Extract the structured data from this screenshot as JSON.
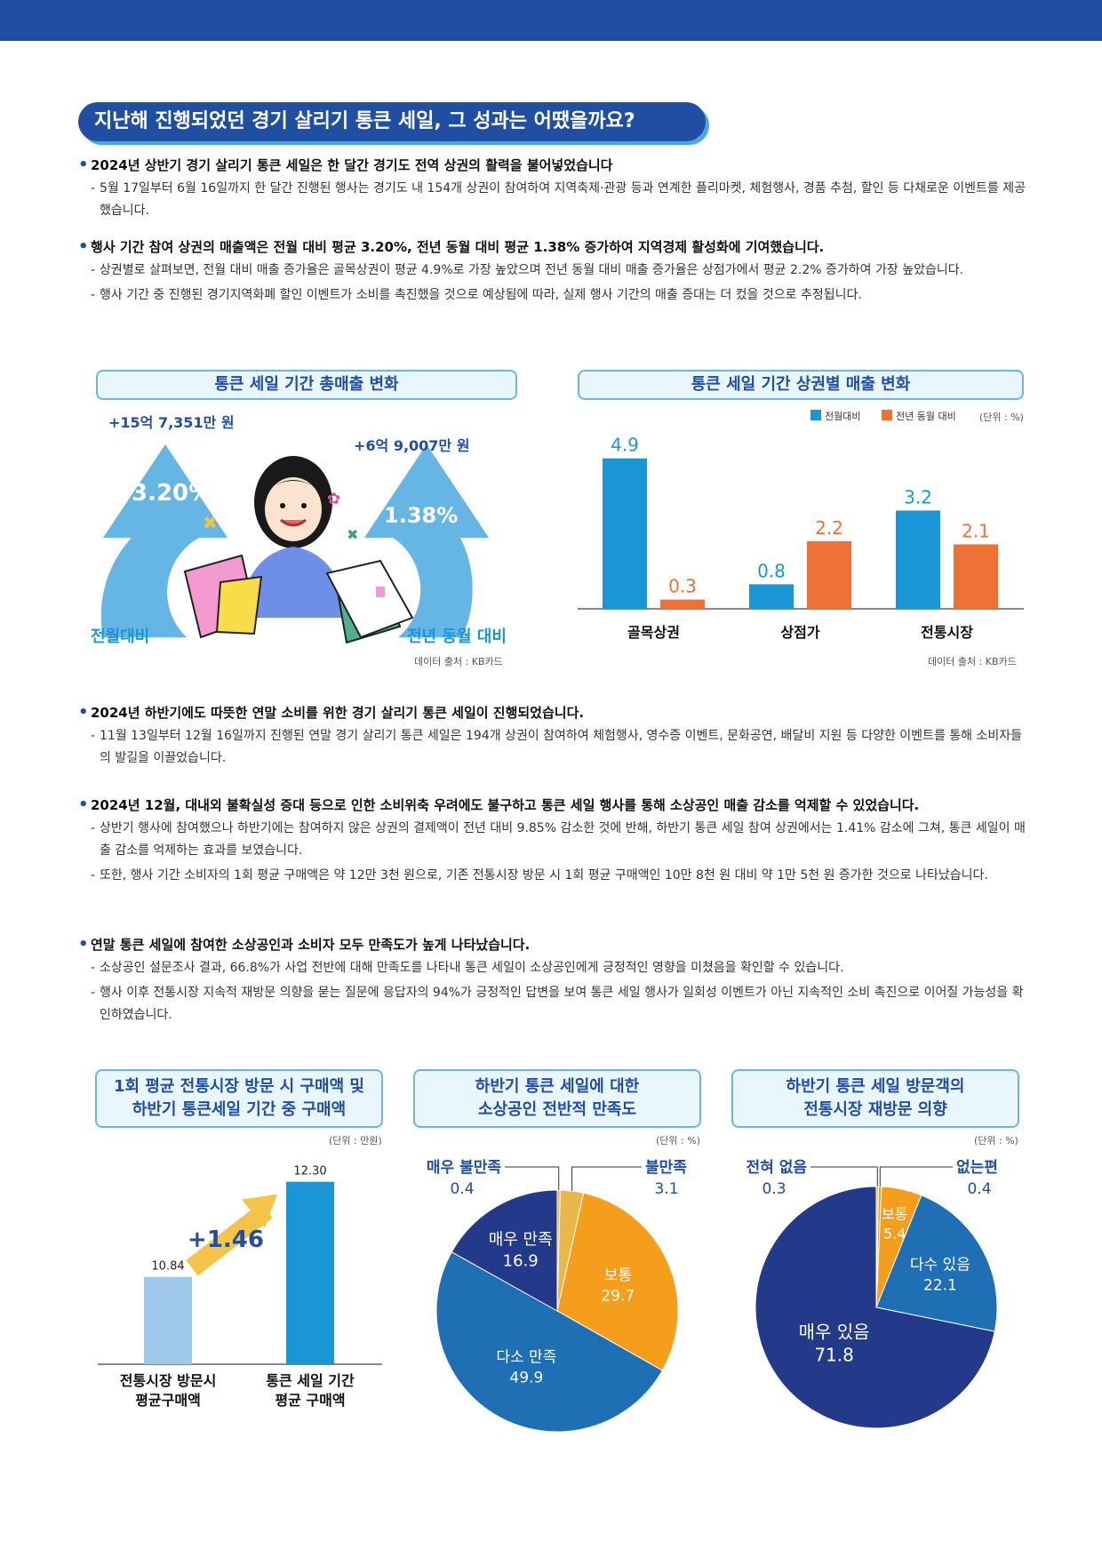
{
  "title": "지난해 진행되었던 경기 살리기 통큰 세일, 그 성과는 어땠을까요?",
  "sections_top": [
    {
      "head": "2024년 상반기 경기 살리기 통큰 세일은 한 달간 경기도 전역 상권의 활력을 불어넣었습니다",
      "subs": [
        "5월 17일부터 6월 16일까지 한 달간 진행된 행사는 경기도 내 154개 상권이 참여하여 지역축제·관광 등과 연계한 플리마켓, 체험행사, 경품 추첨, 할인 등 다채로운 이벤트를 제공했습니다."
      ]
    },
    {
      "head": "행사 기간 참여 상권의 매출액은 전월 대비 평균 3.20%, 전년 동월 대비 평균 1.38% 증가하여 지역경제 활성화에 기여했습니다.",
      "subs": [
        "상권별로 살펴보면, 전월 대비 매출 증가율은 골목상권이 평균 4.9%로 가장 높았으며 전년 동월 대비 매출 증가율은 상점가에서 평균 2.2% 증가하여 가장 높았습니다.",
        "행사 기간 중 진행된 경기지역화폐 할인 이벤트가 소비를 촉진했을 것으로 예상됨에 따라, 실제 행사 기간의 매출 증대는 더 컸을 것으로 추정됩니다."
      ]
    }
  ],
  "sections_mid": [
    {
      "head": "2024년 하반기에도 따뜻한 연말 소비를 위한 경기 살리기 통큰 세일이 진행되었습니다.",
      "subs": [
        "11월 13일부터 12월 16일까지 진행된 연말 경기 살리기 통큰 세일은 194개 상권이 참여하여 체험행사, 영수증 이벤트, 문화공연, 배달비 지원 등 다양한 이벤트를 통해 소비자들의 발길을 이끌었습니다."
      ]
    },
    {
      "head": "2024년 12월, 대내외 불확실성 증대 등으로 인한 소비위축 우려에도 불구하고 통큰 세일 행사를 통해 소상공인 매출 감소를 억제할 수 있었습니다.",
      "subs": [
        "상반기 행사에 참여했으나 하반기에는 참여하지 않은 상권의 결제액이 전년 대비 9.85% 감소한 것에 반해, 하반기 통큰 세일 참여 상권에서는 1.41% 감소에 그쳐, 통큰 세일이 매출 감소를 억제하는 효과를 보였습니다.",
        "또한, 행사 기간 소비자의 1회 평균 구매액은 약 12만 3천 원으로, 기존 전통시장 방문 시 1회 평균 구매액인 10만 8천 원 대비 약 1만 5천 원 증가한 것으로 나타났습니다."
      ]
    },
    {
      "head": "연말 통큰 세일에 참여한 소상공인과 소비자 모두 만족도가 높게 나타났습니다.",
      "subs": [
        "소상공인 설문조사 결과, 66.8%가 사업 전반에 대해 만족도를 나타내 통큰 세일이 소상공인에게 긍정적인 영향을 미쳤음을 확인할 수 있습니다.",
        "행사 이후 전통시장 지속적 재방문 의향을 묻는 질문에 응답자의 94%가 긍정적인 답변을 보여 통큰 세일 행사가 일회성 이벤트가 아닌 지속적인 소비 촉진으로 이어질 가능성을 확인하였습니다."
      ]
    }
  ],
  "colors": {
    "navy": "#1f4ea3",
    "sky": "#4aa8e0",
    "orange": "#f07136",
    "bar_blue": "#1a96d6",
    "pie_navy": "#233a8b",
    "pie_blue": "#1f6fb5",
    "pie_orange": "#f59e1c",
    "pie_gold": "#e9b640"
  },
  "infographic": {
    "box_title": "통큰 세일 기간 총매출 변화",
    "left_amount": "+15억 7,351만 원",
    "left_pct": "3.20%",
    "left_label": "전월대비",
    "right_amount": "+6억 9,007만 원",
    "right_pct": "1.38%",
    "right_label": "전년 동월 대비",
    "source": "데이터 출처 : KB카드",
    "icon": "shopping-woman-icon"
  },
  "bar_box": {
    "title": "통큰 세일 기간 상권별 매출 변화",
    "unit": "(단위 : %)",
    "source": "데이터 출처 : KB카드"
  },
  "mini_box": {
    "title_line1": "1회 평균 전통시장 방문 시 구매액 및",
    "title_line2": "하반기 통큰세일 기간 중 구매액",
    "unit": "(단위 : 만원)",
    "increase_label": "+1.46"
  },
  "pie1_box": {
    "title_line1": "하반기 통큰 세일에 대한",
    "title_line2": "소상공인 전반적 만족도",
    "unit": "(단위 : %)"
  },
  "pie2_box": {
    "title_line1": "하반기 통큰 세일 방문객의",
    "title_line2": "전통시장 재방문 의향",
    "unit": "(단위 : %)"
  },
  "chart_data": [
    {
      "type": "bar",
      "categories": [
        "골목상권",
        "상점가",
        "전통시장"
      ],
      "series": [
        {
          "name": "전월대비",
          "values": [
            4.9,
            0.8,
            3.2
          ]
        },
        {
          "name": "전년 동월 대비",
          "values": [
            0.3,
            2.2,
            2.1
          ]
        }
      ],
      "ylim": [
        0,
        5.5
      ],
      "legend": "top-right",
      "grid": false
    },
    {
      "type": "bar",
      "categories": [
        "전통시장 방문시 평균구매액",
        "통큰 세일 기간 평균 구매액"
      ],
      "category_lines": [
        [
          "전통시장 방문시",
          "평균구매액"
        ],
        [
          "통큰 세일 기간",
          "평균 구매액"
        ]
      ],
      "values": [
        10.84,
        12.3
      ],
      "value_labels": [
        "10.84",
        "12.30"
      ],
      "ylim": [
        9.5,
        12.5
      ],
      "grid": false
    },
    {
      "type": "pie",
      "labels": [
        "매우 불만족",
        "불만족",
        "보통",
        "다소 만족",
        "매우 만족"
      ],
      "values": [
        0.4,
        3.1,
        29.7,
        49.9,
        16.9
      ],
      "value_labels": [
        "0.4",
        "3.1",
        "29.7",
        "49.9",
        "16.9"
      ]
    },
    {
      "type": "pie",
      "labels": [
        "전혀 없음",
        "없는편",
        "보통",
        "다수 있음",
        "매우 있음"
      ],
      "values": [
        0.3,
        0.4,
        5.4,
        22.1,
        71.8
      ],
      "value_labels": [
        "0.3",
        "0.4",
        "5.4",
        "22.1",
        "71.8"
      ]
    }
  ]
}
